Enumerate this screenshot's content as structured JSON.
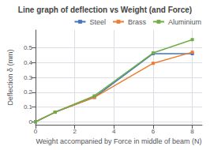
{
  "chart_data": {
    "type": "line",
    "title": "Line graph of deflection vs Weight (and Force)",
    "xlabel": "Weight accompanied by Force in middle of beam (N)",
    "ylabel": "Deflection δ (mm)",
    "x": [
      0,
      1,
      3,
      6,
      8
    ],
    "series": [
      {
        "name": "Steel",
        "color": "#4472C4",
        "marker": "square",
        "values": [
          0,
          0.065,
          0.165,
          0.46,
          0.46
        ]
      },
      {
        "name": "Brass",
        "color": "#ED7D31",
        "marker": "square",
        "values": [
          0,
          0.065,
          0.165,
          0.395,
          0.47
        ]
      },
      {
        "name": "Aluminium",
        "color": "#70AD47",
        "marker": "square",
        "values": [
          0,
          0.065,
          0.175,
          0.465,
          0.555
        ]
      }
    ],
    "xlim": [
      0,
      8.5
    ],
    "ylim": [
      -0.02,
      0.62
    ],
    "xticks": [
      0,
      2,
      4,
      6,
      8
    ],
    "yticks": [
      0,
      0.1,
      0.2,
      0.3,
      0.4,
      0.5
    ],
    "grid": true,
    "legend": "upper right"
  }
}
